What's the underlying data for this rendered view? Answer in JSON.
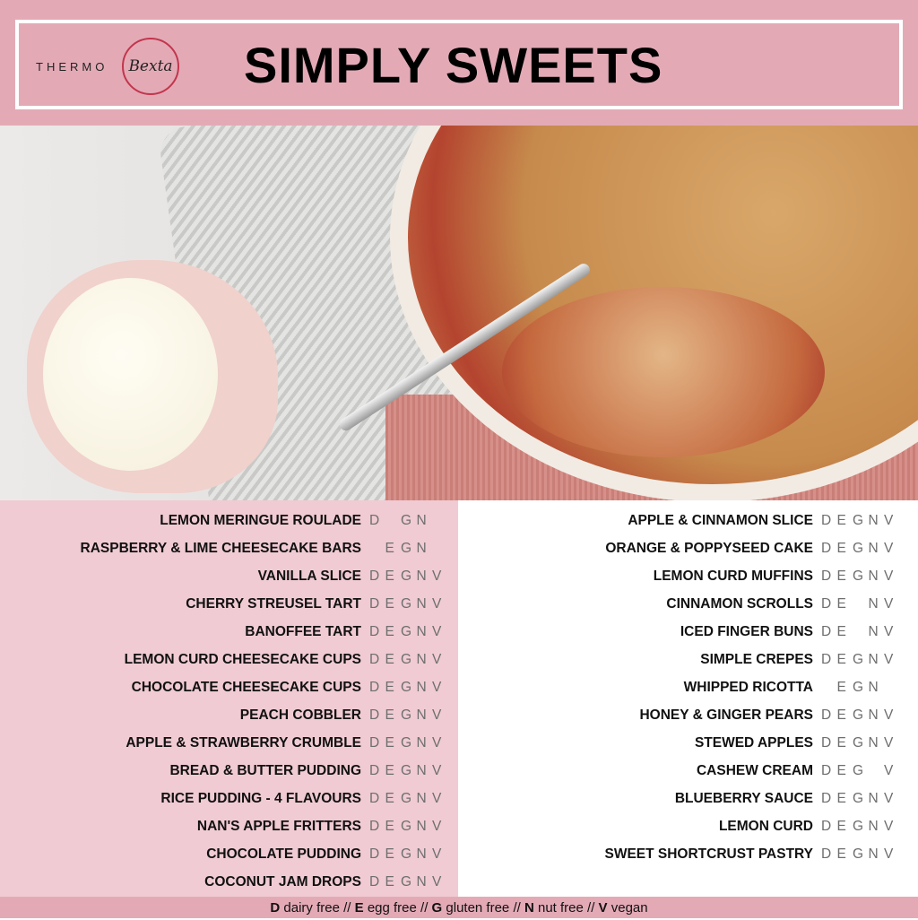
{
  "header": {
    "logo_text": "THERMO",
    "logo_script": "Bexta",
    "title": "SIMPLY SWEETS"
  },
  "colors": {
    "header_pink": "#e3aab6",
    "left_panel": "#f0cbd3",
    "logo_red": "#c2364d"
  },
  "left_items": [
    {
      "name": "LEMON MERINGUE ROULADE",
      "tags": [
        "D",
        "",
        "G",
        "N",
        ""
      ]
    },
    {
      "name": "RASPBERRY & LIME CHEESECAKE BARS",
      "tags": [
        "",
        "E",
        "G",
        "N",
        ""
      ]
    },
    {
      "name": "VANILLA SLICE",
      "tags": [
        "D",
        "E",
        "G",
        "N",
        "V"
      ]
    },
    {
      "name": "CHERRY STREUSEL TART",
      "tags": [
        "D",
        "E",
        "G",
        "N",
        "V"
      ]
    },
    {
      "name": "BANOFFEE TART",
      "tags": [
        "D",
        "E",
        "G",
        "N",
        "V"
      ]
    },
    {
      "name": "LEMON CURD CHEESECAKE CUPS",
      "tags": [
        "D",
        "E",
        "G",
        "N",
        "V"
      ]
    },
    {
      "name": "CHOCOLATE CHEESECAKE CUPS",
      "tags": [
        "D",
        "E",
        "G",
        "N",
        "V"
      ]
    },
    {
      "name": "PEACH COBBLER",
      "tags": [
        "D",
        "E",
        "G",
        "N",
        "V"
      ]
    },
    {
      "name": "APPLE & STRAWBERRY CRUMBLE",
      "tags": [
        "D",
        "E",
        "G",
        "N",
        "V"
      ]
    },
    {
      "name": "BREAD & BUTTER PUDDING",
      "tags": [
        "D",
        "E",
        "G",
        "N",
        "V"
      ]
    },
    {
      "name": "RICE PUDDING - 4 FLAVOURS",
      "tags": [
        "D",
        "E",
        "G",
        "N",
        "V"
      ]
    },
    {
      "name": "NAN'S APPLE FRITTERS",
      "tags": [
        "D",
        "E",
        "G",
        "N",
        "V"
      ]
    },
    {
      "name": "CHOCOLATE PUDDING",
      "tags": [
        "D",
        "E",
        "G",
        "N",
        "V"
      ]
    },
    {
      "name": "COCONUT JAM DROPS",
      "tags": [
        "D",
        "E",
        "G",
        "N",
        "V"
      ]
    }
  ],
  "right_items": [
    {
      "name": "APPLE & CINNAMON SLICE",
      "tags": [
        "D",
        "E",
        "G",
        "N",
        "V"
      ]
    },
    {
      "name": "ORANGE & POPPYSEED CAKE",
      "tags": [
        "D",
        "E",
        "G",
        "N",
        "V"
      ]
    },
    {
      "name": "LEMON CURD MUFFINS",
      "tags": [
        "D",
        "E",
        "G",
        "N",
        "V"
      ]
    },
    {
      "name": "CINNAMON SCROLLS",
      "tags": [
        "D",
        "E",
        "",
        "N",
        "V"
      ]
    },
    {
      "name": "ICED FINGER BUNS",
      "tags": [
        "D",
        "E",
        "",
        "N",
        "V"
      ]
    },
    {
      "name": "SIMPLE CREPES",
      "tags": [
        "D",
        "E",
        "G",
        "N",
        "V"
      ]
    },
    {
      "name": "WHIPPED RICOTTA",
      "tags": [
        "",
        "E",
        "G",
        "N",
        ""
      ]
    },
    {
      "name": "HONEY & GINGER PEARS",
      "tags": [
        "D",
        "E",
        "G",
        "N",
        "V"
      ]
    },
    {
      "name": "STEWED APPLES",
      "tags": [
        "D",
        "E",
        "G",
        "N",
        "V"
      ]
    },
    {
      "name": "CASHEW CREAM",
      "tags": [
        "D",
        "E",
        "G",
        "",
        "V"
      ]
    },
    {
      "name": "BLUEBERRY SAUCE",
      "tags": [
        "D",
        "E",
        "G",
        "N",
        "V"
      ]
    },
    {
      "name": "LEMON CURD",
      "tags": [
        "D",
        "E",
        "G",
        "N",
        "V"
      ]
    },
    {
      "name": "SWEET SHORTCRUST PASTRY",
      "tags": [
        "D",
        "E",
        "G",
        "N",
        "V"
      ]
    }
  ],
  "legend": [
    {
      "key": "D",
      "label": "dairy free"
    },
    {
      "key": "E",
      "label": "egg free"
    },
    {
      "key": "G",
      "label": "gluten free"
    },
    {
      "key": "N",
      "label": "nut free"
    },
    {
      "key": "V",
      "label": "vegan"
    }
  ],
  "legend_separator": "//"
}
